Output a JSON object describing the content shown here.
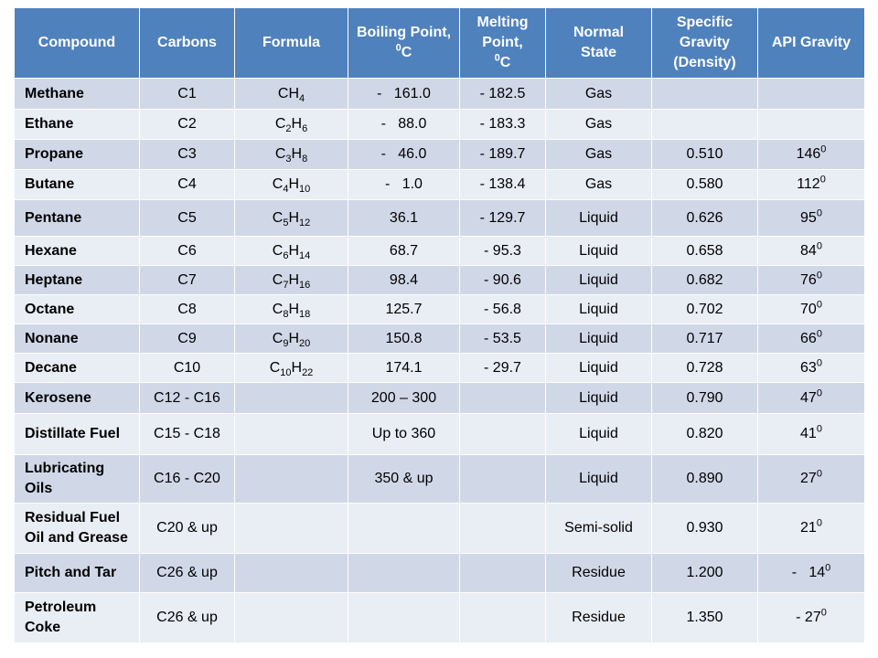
{
  "headers": [
    "Compound",
    "Carbons",
    "Formula",
    "Boiling Point, ⁰C",
    "Melting Point, ⁰C",
    "Normal State",
    "Specific Gravity (Density)",
    "API Gravity"
  ],
  "rows": [
    {
      "compound": "Methane",
      "carbons": "C1",
      "formula": "CH4",
      "boiling": "-   161.0",
      "melting": "- 182.5",
      "state": "Gas",
      "sg": "",
      "api": ""
    },
    {
      "compound": "Ethane",
      "carbons": "C2",
      "formula": "C2H6",
      "boiling": "-   88.0",
      "melting": "- 183.3",
      "state": "Gas",
      "sg": "",
      "api": ""
    },
    {
      "compound": "Propane",
      "carbons": "C3",
      "formula": "C3H8",
      "boiling": "-   46.0",
      "melting": "- 189.7",
      "state": "Gas",
      "sg": "0.510",
      "api": "146⁰"
    },
    {
      "compound": "Butane",
      "carbons": "C4",
      "formula": "C4H10",
      "boiling": "-   1.0",
      "melting": "- 138.4",
      "state": "Gas",
      "sg": "0.580",
      "api": "112⁰"
    },
    {
      "compound": "Pentane",
      "carbons": "C5",
      "formula": "C5H12",
      "boiling": "36.1",
      "melting": "- 129.7",
      "state": "Liquid",
      "sg": "0.626",
      "api": "95⁰"
    },
    {
      "compound": "Hexane",
      "carbons": "C6",
      "formula": "C6H14",
      "boiling": "68.7",
      "melting": "- 95.3",
      "state": "Liquid",
      "sg": "0.658",
      "api": "84⁰"
    },
    {
      "compound": "Heptane",
      "carbons": "C7",
      "formula": "C7H16",
      "boiling": "98.4",
      "melting": "- 90.6",
      "state": "Liquid",
      "sg": "0.682",
      "api": "76⁰"
    },
    {
      "compound": "Octane",
      "carbons": "C8",
      "formula": "C8H18",
      "boiling": "125.7",
      "melting": "- 56.8",
      "state": "Liquid",
      "sg": "0.702",
      "api": "70⁰"
    },
    {
      "compound": "Nonane",
      "carbons": "C9",
      "formula": "C9H20",
      "boiling": "150.8",
      "melting": "- 53.5",
      "state": "Liquid",
      "sg": "0.717",
      "api": "66⁰"
    },
    {
      "compound": "Decane",
      "carbons": "C10",
      "formula": "C10H22",
      "boiling": "174.1",
      "melting": "- 29.7",
      "state": "Liquid",
      "sg": "0.728",
      "api": "63⁰"
    },
    {
      "compound": "Kerosene",
      "carbons": "C12 - C16",
      "formula": "",
      "boiling": "200 – 300",
      "melting": "",
      "state": "Liquid",
      "sg": "0.790",
      "api": "47⁰"
    },
    {
      "compound": "Distillate Fuel",
      "carbons": "C15 - C18",
      "formula": "",
      "boiling": "Up to 360",
      "melting": "",
      "state": "Liquid",
      "sg": "0.820",
      "api": "41⁰"
    },
    {
      "compound": "Lubricating Oils",
      "carbons": "C16 - C20",
      "formula": "",
      "boiling": "350 & up",
      "melting": "",
      "state": "Liquid",
      "sg": "0.890",
      "api": "27⁰"
    },
    {
      "compound": "Residual Fuel Oil and Grease",
      "carbons": "C20 & up",
      "formula": "",
      "boiling": "",
      "melting": "",
      "state": "Semi-solid",
      "sg": "0.930",
      "api": "21⁰"
    },
    {
      "compound": "Pitch and Tar",
      "carbons": "C26 & up",
      "formula": "",
      "boiling": "",
      "melting": "",
      "state": "Residue",
      "sg": "1.200",
      "api": "-   14⁰"
    },
    {
      "compound": "Petroleum Coke",
      "carbons": "C26 & up",
      "formula": "",
      "boiling": "",
      "melting": "",
      "state": "Residue",
      "sg": "1.350",
      "api": "- 27⁰"
    }
  ]
}
